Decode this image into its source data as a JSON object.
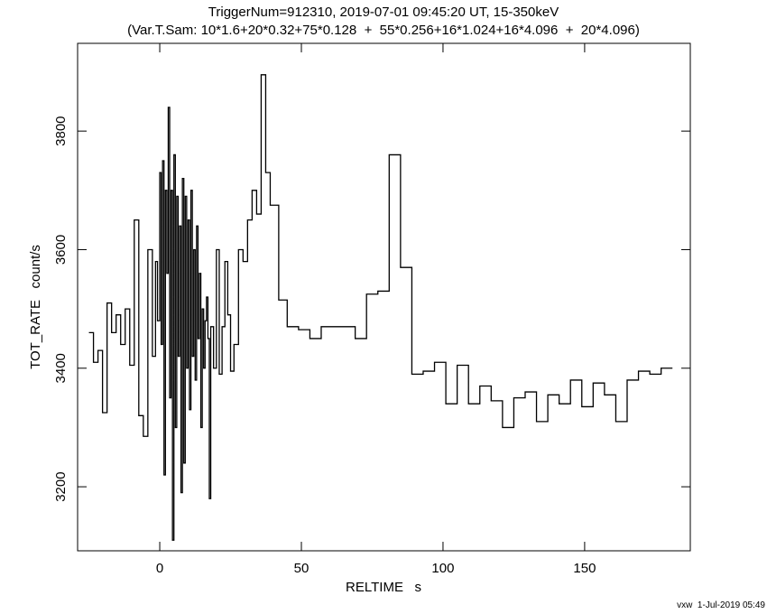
{
  "chart_data": {
    "type": "line",
    "step": "post",
    "title": "TriggerNum=912310, 2019-07-01 09:45:20 UT, 15-350keV",
    "subtitle": "(Var.T.Sam: 10*1.6+20*0.32+75*0.128  +  55*0.256+16*1.024+16*4.096  +  20*4.096)",
    "xlabel": "RELTIME   s",
    "ylabel": "TOT_RATE   count/s",
    "footer": "vxw  1-Jul-2019 05:49",
    "xlim": [
      -29,
      187.3
    ],
    "ylim": [
      3092,
      3948
    ],
    "xticks": [
      0,
      50,
      100,
      150
    ],
    "yticks": [
      3200,
      3400,
      3600,
      3800
    ],
    "series": [
      {
        "color": "#000000",
        "x": [
          -25,
          -23.4,
          -21.8,
          -20.2,
          -18.6,
          -17,
          -15.4,
          -13.8,
          -12.2,
          -10.6,
          -9,
          -7.4,
          -5.8,
          -4.2,
          -2.6,
          -1.5,
          -0.8,
          0,
          0.5,
          1,
          1.5,
          2,
          2.5,
          3,
          3.5,
          4,
          4.5,
          5,
          5.5,
          6,
          6.5,
          7,
          7.5,
          8,
          8.5,
          9,
          9.5,
          10,
          10.5,
          11,
          11.5,
          12,
          12.5,
          13,
          13.5,
          14,
          14.5,
          15,
          15.5,
          16,
          16.5,
          17,
          17.5,
          18,
          19,
          20,
          21,
          22,
          23,
          24,
          25,
          26.2,
          27.8,
          29.4,
          31,
          32.6,
          34.2,
          35.8,
          37.4,
          39,
          42,
          45,
          49,
          53,
          57,
          61,
          69,
          73,
          77,
          81,
          85,
          89,
          93,
          97,
          101,
          105,
          109,
          113,
          117,
          121,
          125,
          129,
          133,
          137,
          141,
          145,
          149,
          153,
          157,
          161,
          165,
          169,
          173,
          177
        ],
        "values": [
          3460,
          3410,
          3430,
          3325,
          3510,
          3460,
          3490,
          3440,
          3500,
          3405,
          3650,
          3320,
          3285,
          3600,
          3420,
          3580,
          3480,
          3730,
          3440,
          3750,
          3220,
          3700,
          3560,
          3840,
          3350,
          3700,
          3110,
          3760,
          3300,
          3690,
          3420,
          3640,
          3190,
          3720,
          3240,
          3690,
          3400,
          3650,
          3330,
          3700,
          3420,
          3600,
          3380,
          3640,
          3450,
          3560,
          3300,
          3500,
          3400,
          3480,
          3520,
          3450,
          3180,
          3470,
          3400,
          3600,
          3390,
          3470,
          3580,
          3490,
          3395,
          3440,
          3600,
          3580,
          3650,
          3700,
          3660,
          3895,
          3730,
          3675,
          3515,
          3470,
          3465,
          3450,
          3470,
          3470,
          3450,
          3525,
          3530,
          3760,
          3570,
          3390,
          3395,
          3410,
          3340,
          3405,
          3340,
          3370,
          3345,
          3300,
          3350,
          3360,
          3310,
          3355,
          3340,
          3380,
          3335,
          3375,
          3355,
          3310,
          3380,
          3395,
          3390,
          3400
        ]
      }
    ]
  }
}
